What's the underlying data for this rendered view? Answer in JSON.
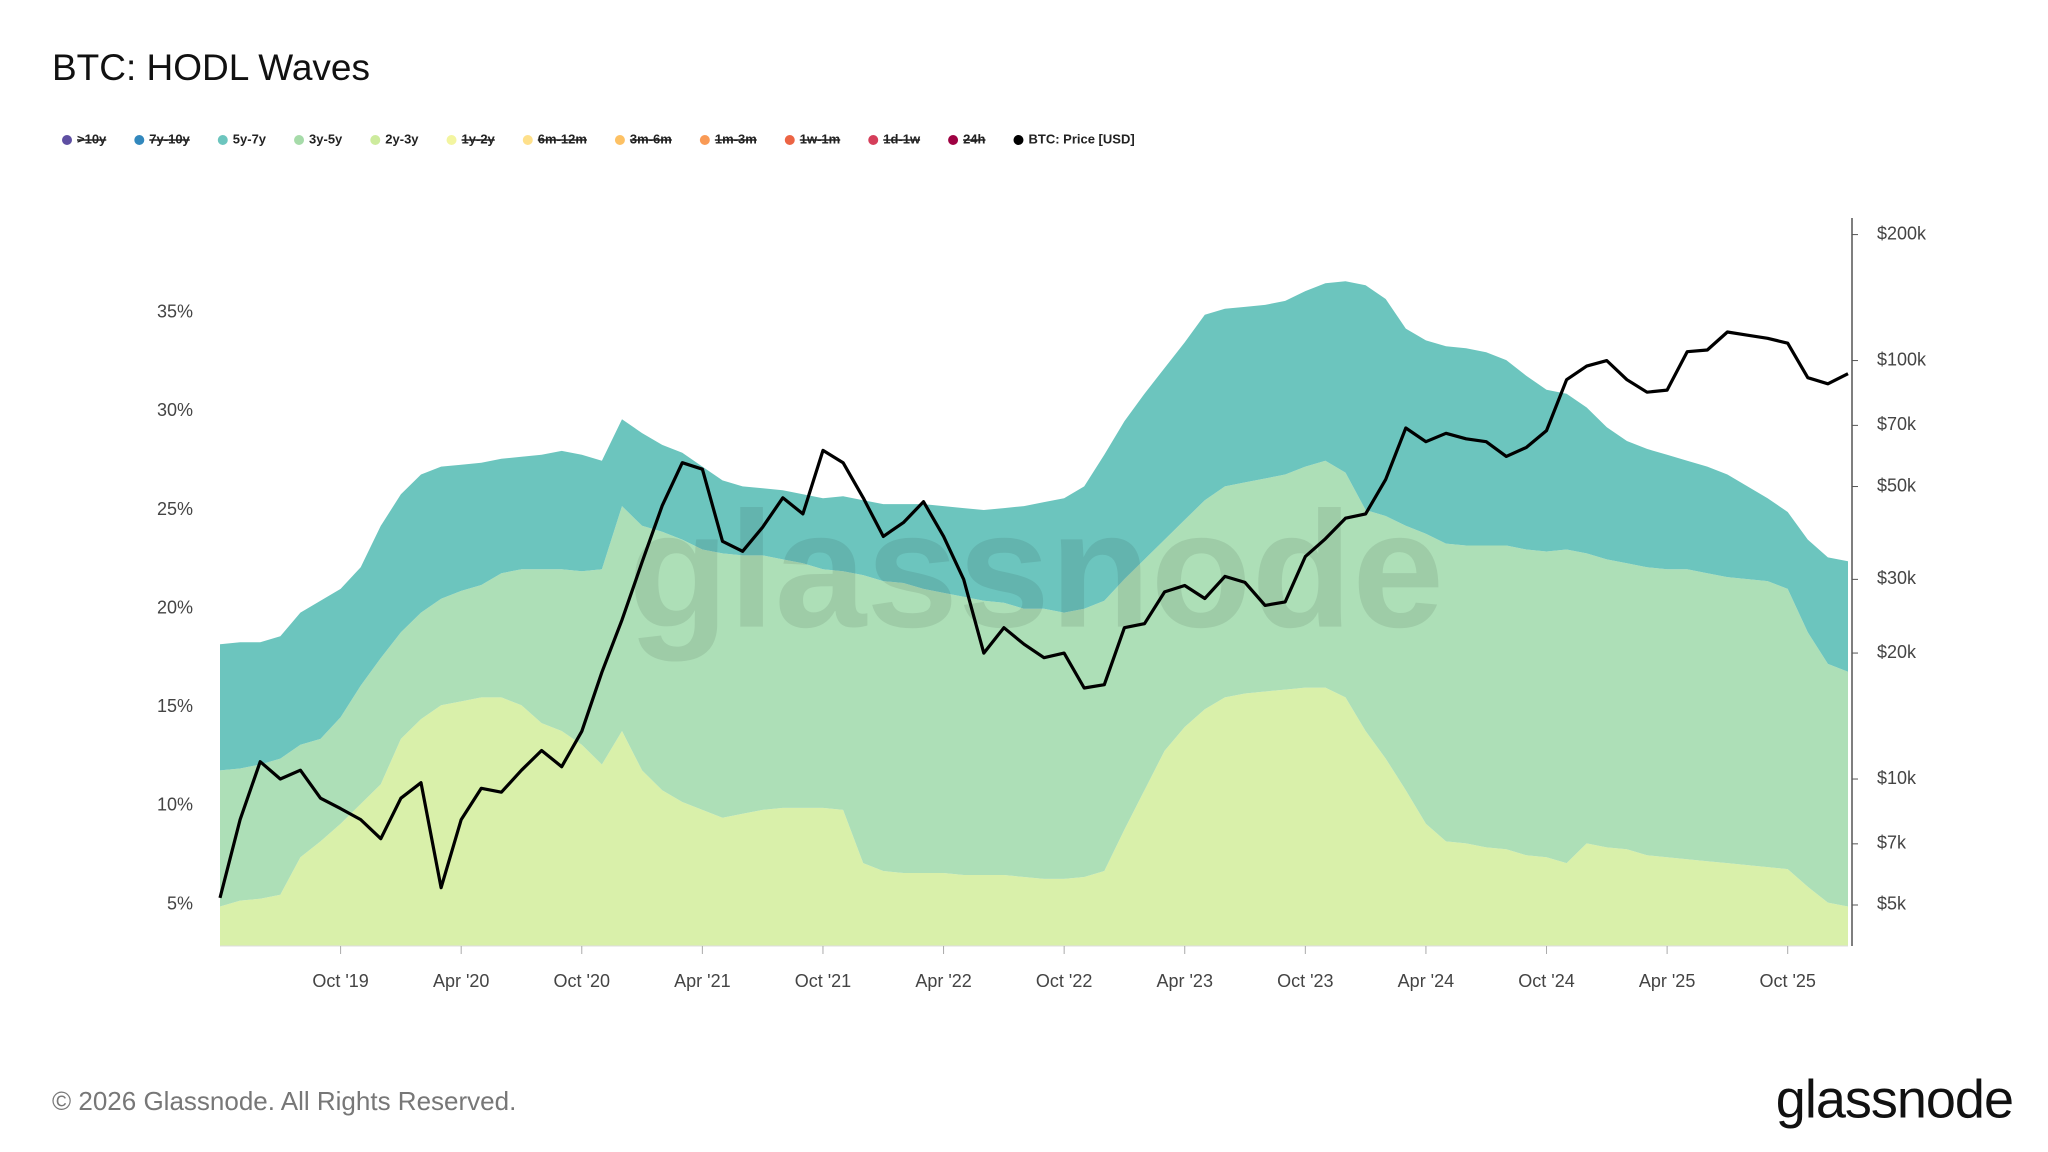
{
  "chart_data": {
    "type": "stacked-area",
    "title": "BTC: HODL Waves",
    "watermark": "glassnode",
    "footer": "© 2026 Glassnode. All Rights Reserved.",
    "logo": "glassnode",
    "x": [
      "2019-04",
      "2019-05",
      "2019-06",
      "2019-07",
      "2019-08",
      "2019-09",
      "2019-10",
      "2019-11",
      "2019-12",
      "2020-01",
      "2020-02",
      "2020-03",
      "2020-04",
      "2020-05",
      "2020-06",
      "2020-07",
      "2020-08",
      "2020-09",
      "2020-10",
      "2020-11",
      "2020-12",
      "2021-01",
      "2021-02",
      "2021-03",
      "2021-04",
      "2021-05",
      "2021-06",
      "2021-07",
      "2021-08",
      "2021-09",
      "2021-10",
      "2021-11",
      "2021-12",
      "2022-01",
      "2022-02",
      "2022-03",
      "2022-04",
      "2022-05",
      "2022-06",
      "2022-07",
      "2022-08",
      "2022-09",
      "2022-10",
      "2022-11",
      "2022-12",
      "2023-01",
      "2023-02",
      "2023-03",
      "2023-04",
      "2023-05",
      "2023-06",
      "2023-07",
      "2023-08",
      "2023-09",
      "2023-10",
      "2023-11",
      "2023-12",
      "2024-01",
      "2024-02",
      "2024-03",
      "2024-04",
      "2024-05",
      "2024-06",
      "2024-07",
      "2024-08",
      "2024-09",
      "2024-10",
      "2024-11",
      "2024-12",
      "2025-01",
      "2025-02",
      "2025-03",
      "2025-04",
      "2025-05",
      "2025-06",
      "2025-07",
      "2025-08",
      "2025-09",
      "2025-10",
      "2025-11",
      "2025-12",
      "2026-01"
    ],
    "xlim": [
      "2019-04",
      "2026-01"
    ],
    "xticks": [
      {
        "value": "2019-10",
        "label": "Oct '19"
      },
      {
        "value": "2020-04",
        "label": "Apr '20"
      },
      {
        "value": "2020-10",
        "label": "Oct '20"
      },
      {
        "value": "2021-04",
        "label": "Apr '21"
      },
      {
        "value": "2021-10",
        "label": "Oct '21"
      },
      {
        "value": "2022-04",
        "label": "Apr '22"
      },
      {
        "value": "2022-10",
        "label": "Oct '22"
      },
      {
        "value": "2023-04",
        "label": "Apr '23"
      },
      {
        "value": "2023-10",
        "label": "Oct '23"
      },
      {
        "value": "2024-04",
        "label": "Apr '24"
      },
      {
        "value": "2024-10",
        "label": "Oct '24"
      },
      {
        "value": "2025-04",
        "label": "Apr '25"
      },
      {
        "value": "2025-10",
        "label": "Oct '25"
      }
    ],
    "ylim": [
      2.9,
      39.5
    ],
    "yticks": [
      {
        "value": 5,
        "label": "5%"
      },
      {
        "value": 10,
        "label": "10%"
      },
      {
        "value": 15,
        "label": "15%"
      },
      {
        "value": 20,
        "label": "20%"
      },
      {
        "value": 25,
        "label": "25%"
      },
      {
        "value": 30,
        "label": "30%"
      },
      {
        "value": 35,
        "label": "35%"
      }
    ],
    "y2lim": [
      3990,
      212000
    ],
    "y2log": true,
    "y2ticks": [
      {
        "value": 5000,
        "label": "$5k"
      },
      {
        "value": 7000,
        "label": "$7k"
      },
      {
        "value": 10000,
        "label": "$10k"
      },
      {
        "value": 20000,
        "label": "$20k"
      },
      {
        "value": 30000,
        "label": "$30k"
      },
      {
        "value": 50000,
        "label": "$50k"
      },
      {
        "value": 70000,
        "label": "$70k"
      },
      {
        "value": 100000,
        "label": "$100k"
      },
      {
        "value": 200000,
        "label": "$200k"
      }
    ],
    "series": [
      {
        "name": ">10y",
        "color": "#5e4fa2",
        "hidden": true
      },
      {
        "name": "7y-10y",
        "color": "#3288bd",
        "hidden": true
      },
      {
        "name": "5y-7y",
        "color": "#6cc5be",
        "stack_order": 2,
        "values": [
          6.4,
          6.4,
          6.2,
          6.2,
          6.7,
          7.0,
          6.5,
          6.0,
          6.7,
          7.0,
          7.0,
          6.7,
          6.4,
          6.2,
          5.8,
          5.7,
          5.8,
          6.0,
          5.9,
          5.5,
          4.4,
          4.7,
          4.4,
          4.4,
          4.2,
          3.7,
          3.5,
          3.4,
          3.5,
          3.5,
          3.6,
          3.8,
          3.8,
          3.9,
          4.0,
          4.3,
          4.4,
          4.5,
          4.6,
          4.8,
          5.2,
          5.4,
          5.8,
          6.2,
          7.4,
          8.0,
          8.4,
          8.7,
          9.0,
          9.4,
          9.0,
          8.9,
          8.8,
          8.8,
          8.9,
          9.0,
          9.7,
          11.4,
          11.0,
          10.0,
          9.8,
          10.0,
          10.0,
          9.8,
          9.4,
          8.8,
          8.2,
          7.9,
          7.4,
          6.7,
          6.2,
          6.0,
          5.8,
          5.5,
          5.4,
          5.2,
          4.7,
          4.2,
          3.9,
          4.7,
          5.4,
          5.6
        ]
      },
      {
        "name": "3y-5y",
        "color": "#a6dba9",
        "fill": "#addfb7",
        "stack_order": 1,
        "values": [
          6.9,
          6.7,
          6.8,
          6.9,
          5.7,
          5.2,
          5.4,
          6.0,
          6.4,
          5.4,
          5.4,
          5.4,
          5.6,
          5.7,
          6.3,
          6.9,
          7.8,
          8.2,
          8.8,
          9.9,
          11.4,
          12.4,
          13.1,
          13.3,
          13.2,
          13.4,
          13.1,
          12.9,
          12.6,
          12.4,
          12.1,
          12.1,
          14.6,
          14.7,
          14.7,
          14.4,
          14.2,
          14.1,
          13.9,
          13.8,
          13.6,
          13.7,
          13.5,
          13.6,
          13.7,
          12.7,
          11.7,
          10.7,
          10.5,
          10.6,
          10.7,
          10.7,
          10.8,
          10.9,
          11.2,
          11.5,
          11.4,
          11.2,
          12.3,
          13.4,
          14.7,
          15.1,
          15.1,
          15.3,
          15.4,
          15.5,
          15.5,
          15.9,
          14.7,
          14.6,
          14.5,
          14.6,
          14.6,
          14.7,
          14.6,
          14.5,
          14.5,
          14.5,
          14.2,
          12.9,
          12.1,
          11.9
        ]
      },
      {
        "name": "2y-3y",
        "color": "#cdeb9d",
        "fill": "#d9f0aa",
        "stack_order": 0,
        "values": [
          4.9,
          5.2,
          5.3,
          5.5,
          7.4,
          8.2,
          9.1,
          10.1,
          11.1,
          13.4,
          14.4,
          15.1,
          15.3,
          15.5,
          15.5,
          15.1,
          14.2,
          13.8,
          13.1,
          12.1,
          13.8,
          11.8,
          10.8,
          10.2,
          9.8,
          9.4,
          9.6,
          9.8,
          9.9,
          9.9,
          9.9,
          9.8,
          7.1,
          6.7,
          6.6,
          6.6,
          6.6,
          6.5,
          6.5,
          6.5,
          6.4,
          6.3,
          6.3,
          6.4,
          6.7,
          8.8,
          10.8,
          12.8,
          14.0,
          14.9,
          15.5,
          15.7,
          15.8,
          15.9,
          16.0,
          16.0,
          15.5,
          13.8,
          12.4,
          10.8,
          9.1,
          8.2,
          8.1,
          7.9,
          7.8,
          7.5,
          7.4,
          7.1,
          8.1,
          7.9,
          7.8,
          7.5,
          7.4,
          7.3,
          7.2,
          7.1,
          7.0,
          6.9,
          6.8,
          5.9,
          5.1,
          4.9
        ]
      },
      {
        "name": "1y-2y",
        "color": "#f3f5a0",
        "hidden": true
      },
      {
        "name": "6m-12m",
        "color": "#fee08b",
        "hidden": true
      },
      {
        "name": "3m-6m",
        "color": "#fdc164",
        "hidden": true
      },
      {
        "name": "1m-3m",
        "color": "#f99a55",
        "hidden": true
      },
      {
        "name": "1w-1m",
        "color": "#ec6444",
        "hidden": true
      },
      {
        "name": "1d-1w",
        "color": "#d53e5a",
        "hidden": true
      },
      {
        "name": "24h",
        "color": "#9e0142",
        "hidden": true
      },
      {
        "name": "BTC: Price [USD]",
        "color": "#000000",
        "axis": "y2",
        "line": true,
        "values": [
          5200,
          8000,
          11000,
          10000,
          10500,
          9000,
          8500,
          8000,
          7200,
          9000,
          9800,
          5500,
          8000,
          9500,
          9300,
          10500,
          11700,
          10700,
          13000,
          18000,
          24000,
          33000,
          45000,
          57000,
          55000,
          37000,
          35000,
          40000,
          47000,
          43000,
          61000,
          57000,
          47000,
          38000,
          41000,
          46000,
          38000,
          30000,
          20000,
          23000,
          21000,
          19500,
          20000,
          16500,
          16800,
          23000,
          23500,
          28000,
          29000,
          27000,
          30500,
          29500,
          26000,
          26500,
          34000,
          37500,
          42000,
          43000,
          52000,
          69000,
          64000,
          67000,
          65000,
          64000,
          59000,
          62000,
          68000,
          90000,
          97000,
          100000,
          90000,
          84000,
          85000,
          105000,
          106000,
          117000,
          115000,
          113000,
          110000,
          91000,
          88000,
          93000
        ]
      }
    ]
  }
}
